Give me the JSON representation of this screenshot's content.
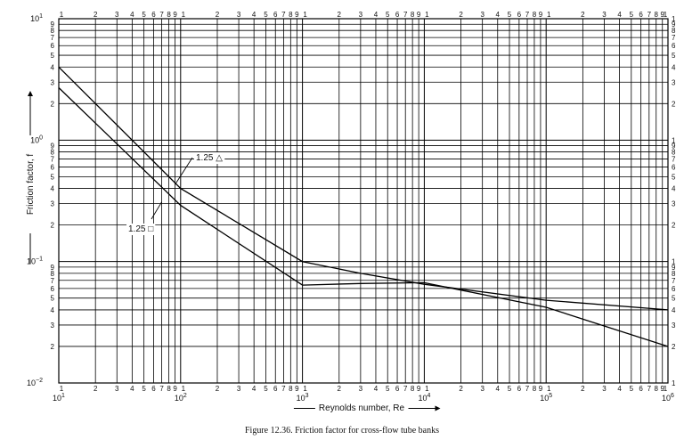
{
  "chart_data": {
    "type": "line",
    "xscale": "log",
    "yscale": "log",
    "xlim": [
      10,
      1000000
    ],
    "ylim": [
      0.01,
      10
    ],
    "grid": true,
    "xlabel": "Reynolds number, Re",
    "ylabel": "Friction factor, f",
    "x_major_ticks": [
      {
        "base": "10",
        "exp": "1"
      },
      {
        "base": "10",
        "exp": "2"
      },
      {
        "base": "10",
        "exp": "3"
      },
      {
        "base": "10",
        "exp": "4"
      },
      {
        "base": "10",
        "exp": "5"
      },
      {
        "base": "10",
        "exp": "6"
      }
    ],
    "y_major_ticks": [
      {
        "base": "10",
        "exp": "−2"
      },
      {
        "base": "10",
        "exp": "−1"
      },
      {
        "base": "10",
        "exp": "0"
      },
      {
        "base": "10",
        "exp": "1"
      }
    ],
    "minor_tick_labels": [
      "1",
      "2",
      "3",
      "4",
      "5",
      "6",
      "7",
      "8",
      "9"
    ],
    "series": [
      {
        "name": "1.25 △",
        "x": [
          10,
          100,
          1000,
          3000,
          10000,
          100000,
          1000000
        ],
        "y": [
          4.0,
          0.4,
          0.1,
          0.08,
          0.065,
          0.048,
          0.04
        ]
      },
      {
        "name": "1.25 □",
        "x": [
          10,
          100,
          1000,
          3000,
          10000,
          100000,
          1000000
        ],
        "y": [
          2.7,
          0.29,
          0.064,
          0.066,
          0.067,
          0.042,
          0.02
        ]
      }
    ],
    "annotations": [
      {
        "text": "1.25 △",
        "leader_to": {
          "x": 90,
          "y": 0.43
        }
      },
      {
        "text": "1.25 □",
        "leader_to": {
          "x": 70,
          "y": 0.31
        }
      }
    ],
    "caption": "Figure 12.36.   Friction factor for cross-flow tube banks"
  }
}
